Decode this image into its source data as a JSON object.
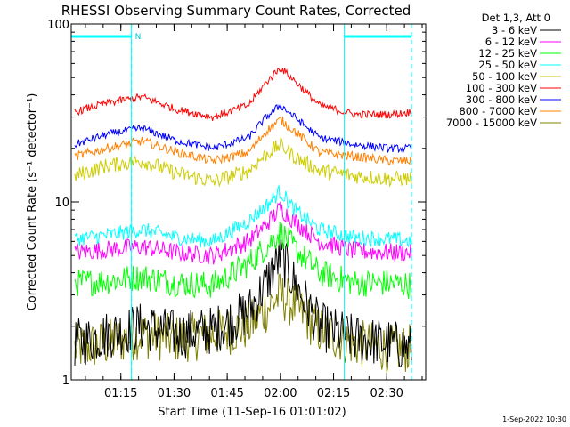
{
  "chart_data": {
    "type": "line",
    "title": "RHESSI Observing Summary Count Rates, Corrected",
    "xlabel": "Start Time (11-Sep-16 01:01:02)",
    "ylabel": "Corrected Count Rate (s⁻¹ detector⁻¹)",
    "yscale": "log",
    "ylim": [
      1,
      100
    ],
    "xlim_minutes": [
      0,
      100
    ],
    "x_start": "01:01:02",
    "x_ticks": [
      {
        "label": "01:15",
        "minute": 14
      },
      {
        "label": "01:30",
        "minute": 29
      },
      {
        "label": "01:45",
        "minute": 44
      },
      {
        "label": "02:00",
        "minute": 59
      },
      {
        "label": "02:15",
        "minute": 74
      },
      {
        "label": "02:30",
        "minute": 89
      }
    ],
    "y_ticks": [
      {
        "label": "1",
        "value": 1
      },
      {
        "label": "10",
        "value": 10
      },
      {
        "label": "100",
        "value": 100
      }
    ],
    "legend_header": "Det 1,3, Att 0",
    "legend_position": "top-right, outside plot",
    "series": [
      {
        "name": "3 - 6 keV",
        "color": "#000000",
        "x": [
          1,
          10,
          20,
          30,
          40,
          50,
          55,
          59,
          63,
          70,
          80,
          90,
          96
        ],
        "values": [
          1.6,
          1.8,
          2.0,
          1.8,
          1.9,
          2.4,
          3.5,
          5.0,
          3.5,
          2.0,
          1.7,
          1.6,
          1.5
        ]
      },
      {
        "name": "6 - 12 keV",
        "color": "#ff00ff",
        "x": [
          1,
          10,
          20,
          30,
          40,
          50,
          55,
          59,
          63,
          70,
          80,
          90,
          96
        ],
        "values": [
          5.2,
          5.4,
          5.6,
          5.2,
          5.0,
          6.0,
          7.5,
          9.2,
          7.8,
          6.0,
          5.3,
          5.2,
          5.2
        ]
      },
      {
        "name": "12 - 25 keV",
        "color": "#00ff00",
        "x": [
          1,
          10,
          20,
          30,
          40,
          50,
          55,
          59,
          63,
          70,
          80,
          90,
          96
        ],
        "values": [
          3.5,
          3.6,
          3.8,
          3.5,
          3.4,
          4.5,
          5.6,
          6.8,
          5.5,
          4.0,
          3.5,
          3.5,
          3.4
        ]
      },
      {
        "name": "25 - 50 keV",
        "color": "#00ffff",
        "x": [
          1,
          10,
          20,
          30,
          40,
          50,
          55,
          59,
          63,
          70,
          80,
          90,
          96
        ],
        "values": [
          6.2,
          6.5,
          7.0,
          6.3,
          6.0,
          7.8,
          9.5,
          11.5,
          9.0,
          7.0,
          6.3,
          6.2,
          6.0
        ]
      },
      {
        "name": "50 - 100 keV",
        "color": "#cccc00",
        "x": [
          1,
          10,
          20,
          30,
          40,
          50,
          55,
          59,
          63,
          70,
          80,
          90,
          96
        ],
        "values": [
          14,
          16,
          17,
          14.5,
          13,
          15,
          18.5,
          21,
          18,
          15,
          14,
          13.5,
          13.5
        ]
      },
      {
        "name": "100 - 300 keV",
        "color": "#ff0000",
        "x": [
          1,
          10,
          20,
          30,
          40,
          50,
          55,
          59,
          63,
          70,
          80,
          90,
          96
        ],
        "values": [
          32,
          36,
          39,
          33,
          30,
          35,
          47,
          57,
          48,
          35,
          31,
          31,
          32
        ]
      },
      {
        "name": "300 - 800 keV",
        "color": "#0000ff",
        "x": [
          1,
          10,
          20,
          30,
          40,
          50,
          55,
          59,
          63,
          70,
          80,
          90,
          96
        ],
        "values": [
          21,
          24,
          26,
          22,
          20,
          23,
          30,
          35,
          30,
          23,
          21,
          20,
          20
        ]
      },
      {
        "name": "800 - 7000 keV",
        "color": "#ff8000",
        "x": [
          1,
          10,
          20,
          30,
          40,
          50,
          55,
          59,
          63,
          70,
          80,
          90,
          96
        ],
        "values": [
          18,
          20,
          22,
          19,
          17,
          19,
          25,
          29,
          25,
          19,
          18,
          17,
          17
        ]
      },
      {
        "name": "7000 - 15000 keV",
        "color": "#808000",
        "x": [
          1,
          10,
          20,
          30,
          40,
          50,
          55,
          59,
          63,
          70,
          80,
          90,
          96
        ],
        "values": [
          1.5,
          1.6,
          1.8,
          1.7,
          1.8,
          2.0,
          2.5,
          3.0,
          2.6,
          1.9,
          1.6,
          1.5,
          1.5
        ]
      }
    ],
    "annotations": {
      "flag_label": "N",
      "flag_intervals_minutes": [
        [
          0,
          17
        ],
        [
          77,
          96
        ]
      ],
      "cyan_vertical_lines_minutes": [
        17,
        77
      ],
      "cyan_dashed_lines_minutes": [
        17,
        96
      ]
    },
    "footer_date": "1-Sep-2022 10:30"
  }
}
